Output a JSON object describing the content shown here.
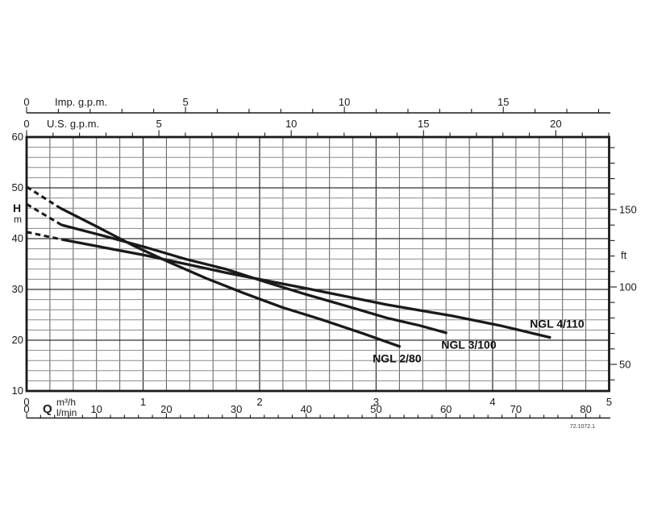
{
  "chart_data": {
    "type": "line",
    "description": "Pump performance curves: head H versus flow Q for three NGL pump models",
    "flow_axes": {
      "imp_gpm": {
        "label": "Imp. g.p.m.",
        "per_m3h": 3.66615,
        "tick_labels": [
          0,
          5,
          10,
          15
        ],
        "minor_step": 1,
        "max_tick": 18
      },
      "us_gpm": {
        "label": "U.S. g.p.m.",
        "per_m3h": 4.40287,
        "tick_labels": [
          0,
          5,
          10,
          15,
          20
        ],
        "minor_step": 1,
        "max_tick": 22
      },
      "m3h": {
        "label": "Q",
        "unit": "m³/h",
        "min": 0,
        "max": 5,
        "tick_labels": [
          0,
          1,
          2,
          3,
          4,
          5
        ],
        "grid_minor_step": 0.2
      },
      "l_min": {
        "unit": "l/min",
        "per_m3h": 16.6667,
        "tick_labels": [
          0,
          10,
          20,
          30,
          40,
          50,
          60,
          70,
          80
        ],
        "minor_step": 2,
        "max_tick": 82
      }
    },
    "head_axes": {
      "m": {
        "label": "H",
        "unit": "m",
        "min": 10,
        "max": 60,
        "tick_labels": [
          60,
          50,
          40,
          30,
          20,
          10
        ],
        "grid_minor_step": 2,
        "major_step": 10
      },
      "ft": {
        "unit": "ft",
        "per_m": 3.28084,
        "tick_labels": [
          150,
          100,
          50
        ],
        "minor_step": 10,
        "tick_min": 40,
        "tick_max": 190
      }
    },
    "series": [
      {
        "name": "NGL 2/80",
        "dashed": [
          [
            0,
            50.2
          ],
          [
            0.29,
            46.0
          ]
        ],
        "solid": [
          [
            0.29,
            46.0
          ],
          [
            0.6,
            42.4
          ],
          [
            0.91,
            38.7
          ],
          [
            1.22,
            35.4
          ],
          [
            1.54,
            32.2
          ],
          [
            1.85,
            29.4
          ],
          [
            2.19,
            26.5
          ],
          [
            2.54,
            24.0
          ],
          [
            2.89,
            21.3
          ],
          [
            3.21,
            18.7
          ]
        ],
        "label_q": 2.97,
        "label_h": 15.6
      },
      {
        "name": "NGL 3/100",
        "dashed": [
          [
            0,
            46.8
          ],
          [
            0.3,
            42.7
          ]
        ],
        "solid": [
          [
            0.3,
            42.7
          ],
          [
            0.67,
            40.5
          ],
          [
            1.02,
            38.3
          ],
          [
            1.36,
            36.0
          ],
          [
            1.71,
            34.0
          ],
          [
            2.06,
            31.4
          ],
          [
            2.4,
            29.0
          ],
          [
            2.75,
            26.7
          ],
          [
            3.09,
            24.4
          ],
          [
            3.37,
            22.9
          ],
          [
            3.61,
            21.4
          ]
        ],
        "label_q": 3.56,
        "label_h": 18.3
      },
      {
        "name": "NGL 4/110",
        "dashed": [
          [
            0,
            41.3
          ],
          [
            0.31,
            39.8
          ]
        ],
        "solid": [
          [
            0.31,
            39.8
          ],
          [
            1.02,
            36.7
          ],
          [
            1.71,
            33.3
          ],
          [
            2.4,
            30.2
          ],
          [
            3.09,
            27.0
          ],
          [
            3.65,
            24.8
          ],
          [
            4.06,
            22.9
          ],
          [
            4.5,
            20.5
          ]
        ],
        "label_q": 4.32,
        "label_h": 22.5
      }
    ],
    "footnote": "72.1072.1",
    "legend_position": "on-curve",
    "grid": true,
    "colors": {
      "curve": "#1a1a1a",
      "frame": "#1a1a1a",
      "grid_minor_vertical": "#5a5a5a",
      "grid_minor_horizontal": "#8a8a8a",
      "grid_major": "#333333",
      "text": "#1a1a1a"
    }
  }
}
